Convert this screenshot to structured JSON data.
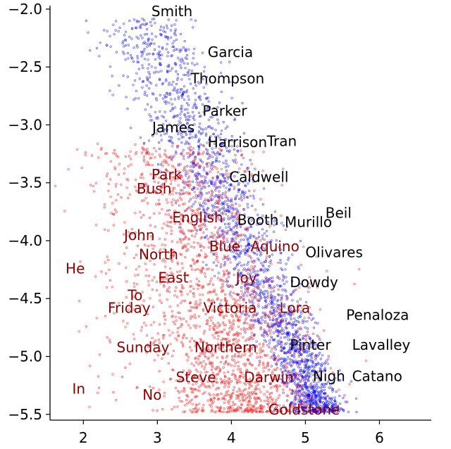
{
  "chart_data": {
    "type": "scatter",
    "title": "",
    "xlabel": "",
    "ylabel": "",
    "xlim": [
      1.55,
      6.7
    ],
    "ylim": [
      -5.55,
      -1.97
    ],
    "x_ticks": [
      2,
      3,
      4,
      5,
      6
    ],
    "y_ticks": [
      -2.0,
      -2.5,
      -3.0,
      -3.5,
      -4.0,
      -4.5,
      -5.0,
      -5.5
    ],
    "x_tick_labels": [
      "2",
      "3",
      "4",
      "5",
      "6"
    ],
    "y_tick_labels": [
      "−2.0",
      "−2.5",
      "−3.0",
      "−3.5",
      "−4.0",
      "−4.5",
      "−5.0",
      "−5.5"
    ],
    "grid": false,
    "series": [
      {
        "color": "#0000ff",
        "marker": "hollow circle",
        "labels": [
          {
            "text": "Smith",
            "x": 2.92,
            "y": -2.02
          },
          {
            "text": "Garcia",
            "x": 3.68,
            "y": -2.37
          },
          {
            "text": "Thompson",
            "x": 3.45,
            "y": -2.6
          },
          {
            "text": "Parker",
            "x": 3.61,
            "y": -2.88
          },
          {
            "text": "James",
            "x": 2.93,
            "y": -3.02
          },
          {
            "text": "Harrison",
            "x": 3.68,
            "y": -3.15
          },
          {
            "text": "Tran",
            "x": 4.48,
            "y": -3.14
          },
          {
            "text": "Caldwell",
            "x": 3.97,
            "y": -3.45
          },
          {
            "text": "Beil",
            "x": 5.27,
            "y": -3.76
          },
          {
            "text": "Booth",
            "x": 4.08,
            "y": -3.82
          },
          {
            "text": "Murillo",
            "x": 4.72,
            "y": -3.84
          },
          {
            "text": "Olivares",
            "x": 5.0,
            "y": -4.1
          },
          {
            "text": "Dowdy",
            "x": 4.79,
            "y": -4.36
          },
          {
            "text": "Penaloza",
            "x": 5.55,
            "y": -4.64
          },
          {
            "text": "Pinter",
            "x": 4.79,
            "y": -4.9
          },
          {
            "text": "Lavalley",
            "x": 5.63,
            "y": -4.9
          },
          {
            "text": "Nigh",
            "x": 5.1,
            "y": -5.17
          },
          {
            "text": "Catano",
            "x": 5.63,
            "y": -5.17
          }
        ]
      },
      {
        "color": "#ff0000",
        "marker": "hollow circle",
        "labels": [
          {
            "text": "Park",
            "x": 2.92,
            "y": -3.43
          },
          {
            "text": "Bush",
            "x": 2.72,
            "y": -3.55
          },
          {
            "text": "English",
            "x": 3.2,
            "y": -3.8
          },
          {
            "text": "John",
            "x": 2.55,
            "y": -3.95
          },
          {
            "text": "North",
            "x": 2.75,
            "y": -4.12
          },
          {
            "text": "Blue",
            "x": 3.7,
            "y": -4.05
          },
          {
            "text": "Aquino",
            "x": 4.26,
            "y": -4.05
          },
          {
            "text": "He",
            "x": 1.76,
            "y": -4.24
          },
          {
            "text": "East",
            "x": 3.01,
            "y": -4.32
          },
          {
            "text": "Joy",
            "x": 4.06,
            "y": -4.32
          },
          {
            "text": "To",
            "x": 2.6,
            "y": -4.47
          },
          {
            "text": "Friday",
            "x": 2.33,
            "y": -4.58
          },
          {
            "text": "Victoria",
            "x": 3.62,
            "y": -4.58
          },
          {
            "text": "Lora",
            "x": 4.65,
            "y": -4.58
          },
          {
            "text": "Sunday",
            "x": 2.45,
            "y": -4.92
          },
          {
            "text": "Northern",
            "x": 3.5,
            "y": -4.92
          },
          {
            "text": "Steve",
            "x": 3.25,
            "y": -5.18
          },
          {
            "text": "Darwin",
            "x": 4.17,
            "y": -5.18
          },
          {
            "text": "In",
            "x": 1.85,
            "y": -5.28
          },
          {
            "text": "No",
            "x": 2.8,
            "y": -5.33
          },
          {
            "text": "Goldstone",
            "x": 4.5,
            "y": -5.46
          }
        ]
      }
    ]
  }
}
